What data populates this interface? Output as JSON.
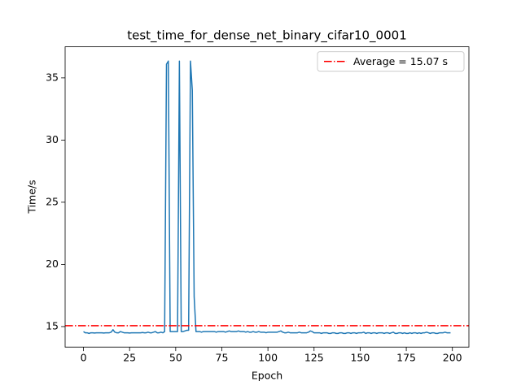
{
  "chart_data": {
    "type": "line",
    "title": "test_time_for_dense_net_binary_cifar10_0001",
    "x_label": "Epoch",
    "y_label": "Time/s",
    "x": [
      0,
      1,
      2,
      3,
      4,
      5,
      6,
      7,
      8,
      9,
      10,
      11,
      12,
      13,
      14,
      15,
      16,
      17,
      18,
      19,
      20,
      21,
      22,
      23,
      24,
      25,
      26,
      27,
      28,
      29,
      30,
      31,
      32,
      33,
      34,
      35,
      36,
      37,
      38,
      39,
      40,
      41,
      42,
      43,
      44,
      45,
      46,
      47,
      48,
      49,
      50,
      51,
      52,
      53,
      54,
      55,
      56,
      57,
      58,
      59,
      60,
      61,
      62,
      63,
      64,
      65,
      66,
      67,
      68,
      69,
      70,
      71,
      72,
      73,
      74,
      75,
      76,
      77,
      78,
      79,
      80,
      81,
      82,
      83,
      84,
      85,
      86,
      87,
      88,
      89,
      90,
      91,
      92,
      93,
      94,
      95,
      96,
      97,
      98,
      99,
      100,
      101,
      102,
      103,
      104,
      105,
      106,
      107,
      108,
      109,
      110,
      111,
      112,
      113,
      114,
      115,
      116,
      117,
      118,
      119,
      120,
      121,
      122,
      123,
      124,
      125,
      126,
      127,
      128,
      129,
      130,
      131,
      132,
      133,
      134,
      135,
      136,
      137,
      138,
      139,
      140,
      141,
      142,
      143,
      144,
      145,
      146,
      147,
      148,
      149,
      150,
      151,
      152,
      153,
      154,
      155,
      156,
      157,
      158,
      159,
      160,
      161,
      162,
      163,
      164,
      165,
      166,
      167,
      168,
      169,
      170,
      171,
      172,
      173,
      174,
      175,
      176,
      177,
      178,
      179,
      180,
      181,
      182,
      183,
      184,
      185,
      186,
      187,
      188,
      189,
      190,
      191,
      192,
      193,
      194,
      195,
      196,
      197,
      198,
      199
    ],
    "series": [
      {
        "color": "#1f77b4",
        "values": [
          14.6,
          14.5,
          14.5,
          14.45,
          14.5,
          14.5,
          14.48,
          14.5,
          14.5,
          14.5,
          14.5,
          14.48,
          14.5,
          14.5,
          14.5,
          14.55,
          14.75,
          14.55,
          14.5,
          14.5,
          14.6,
          14.55,
          14.5,
          14.5,
          14.5,
          14.48,
          14.5,
          14.5,
          14.5,
          14.5,
          14.5,
          14.5,
          14.52,
          14.5,
          14.5,
          14.55,
          14.5,
          14.5,
          14.55,
          14.6,
          14.5,
          14.5,
          14.55,
          14.5,
          14.6,
          36.1,
          36.35,
          14.6,
          14.6,
          14.6,
          14.6,
          14.6,
          36.35,
          14.6,
          14.6,
          14.65,
          14.7,
          14.7,
          36.35,
          34.0,
          17.4,
          14.6,
          14.6,
          14.6,
          14.55,
          14.6,
          14.6,
          14.6,
          14.6,
          14.6,
          14.6,
          14.6,
          14.55,
          14.6,
          14.6,
          14.6,
          14.6,
          14.55,
          14.6,
          14.65,
          14.6,
          14.6,
          14.6,
          14.6,
          14.65,
          14.6,
          14.6,
          14.6,
          14.55,
          14.6,
          14.55,
          14.55,
          14.6,
          14.55,
          14.55,
          14.6,
          14.55,
          14.55,
          14.55,
          14.5,
          14.55,
          14.55,
          14.55,
          14.55,
          14.55,
          14.55,
          14.6,
          14.65,
          14.55,
          14.5,
          14.5,
          14.55,
          14.5,
          14.5,
          14.5,
          14.5,
          14.5,
          14.55,
          14.5,
          14.5,
          14.5,
          14.5,
          14.55,
          14.65,
          14.6,
          14.5,
          14.5,
          14.5,
          14.5,
          14.45,
          14.5,
          14.5,
          14.5,
          14.45,
          14.45,
          14.5,
          14.5,
          14.45,
          14.45,
          14.5,
          14.5,
          14.45,
          14.45,
          14.5,
          14.5,
          14.45,
          14.5,
          14.5,
          14.45,
          14.5,
          14.5,
          14.5,
          14.55,
          14.45,
          14.5,
          14.5,
          14.45,
          14.5,
          14.5,
          14.45,
          14.5,
          14.5,
          14.5,
          14.45,
          14.5,
          14.5,
          14.45,
          14.5,
          14.55,
          14.45,
          14.45,
          14.5,
          14.5,
          14.45,
          14.5,
          14.45,
          14.45,
          14.5,
          14.45,
          14.5,
          14.5,
          14.45,
          14.5,
          14.45,
          14.5,
          14.5,
          14.55,
          14.5,
          14.45,
          14.5,
          14.5,
          14.45,
          14.45,
          14.5,
          14.5,
          14.5,
          14.55,
          14.5,
          14.5,
          14.5
        ]
      }
    ],
    "average": {
      "label": "Average = 15.07 s",
      "value": 15.07,
      "color": "#ff0000"
    },
    "xlim": [
      -9.95,
      208.95
    ],
    "xticks": [
      0,
      25,
      50,
      75,
      100,
      125,
      150,
      175,
      200
    ],
    "ylim": [
      13.35,
      37.5
    ],
    "yticks": [
      15,
      20,
      25,
      30,
      35
    ],
    "legend": "upper right"
  }
}
